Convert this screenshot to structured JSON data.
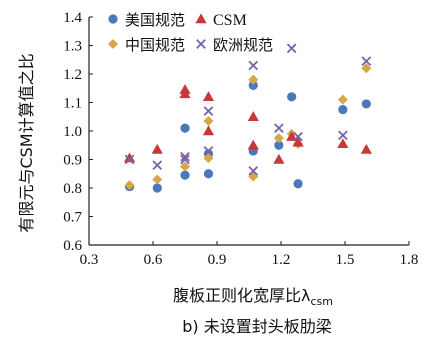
{
  "chart_data": {
    "type": "scatter",
    "xlabel": "腹板正则化宽厚比λ",
    "xlabel_subscript": "csm",
    "ylabel": "有限元与CSM计算值之比",
    "caption": "b) 未设置封头板肋梁",
    "xlim": [
      0.3,
      1.8
    ],
    "ylim": [
      0.6,
      1.4
    ],
    "xticks": [
      "0.3",
      "0.6",
      "0.9",
      "1.2",
      "1.5",
      "1.8"
    ],
    "yticks": [
      "0.6",
      "0.7",
      "0.8",
      "0.9",
      "1.0",
      "1.1",
      "1.2",
      "1.3",
      "1.4"
    ],
    "grid": false,
    "legend_position": "top",
    "series": [
      {
        "name": "美国规范",
        "marker": "circle",
        "color": "#4a78bd",
        "points": [
          [
            0.49,
            0.805
          ],
          [
            0.62,
            0.8
          ],
          [
            0.75,
            1.01
          ],
          [
            0.75,
            0.845
          ],
          [
            0.86,
            0.85
          ],
          [
            0.86,
            0.92
          ],
          [
            1.07,
            1.16
          ],
          [
            1.07,
            0.93
          ],
          [
            1.19,
            0.95
          ],
          [
            1.25,
            1.12
          ],
          [
            1.28,
            0.815
          ],
          [
            1.49,
            1.075
          ],
          [
            1.6,
            1.095
          ]
        ]
      },
      {
        "name": "CSM",
        "marker": "triangle",
        "color": "#c8373a",
        "points": [
          [
            0.49,
            0.905
          ],
          [
            0.62,
            0.935
          ],
          [
            0.75,
            1.145
          ],
          [
            0.75,
            1.13
          ],
          [
            0.86,
            1.12
          ],
          [
            0.86,
            1.0
          ],
          [
            1.07,
            1.05
          ],
          [
            1.07,
            0.95
          ],
          [
            1.19,
            0.9
          ],
          [
            1.25,
            0.98
          ],
          [
            1.28,
            0.96
          ],
          [
            1.49,
            0.955
          ],
          [
            1.6,
            0.935
          ]
        ]
      },
      {
        "name": "中国规范",
        "marker": "diamond",
        "color": "#d4a84a",
        "points": [
          [
            0.49,
            0.81
          ],
          [
            0.62,
            0.83
          ],
          [
            0.75,
            0.875
          ],
          [
            0.75,
            1.135
          ],
          [
            0.86,
            1.035
          ],
          [
            0.86,
            0.905
          ],
          [
            1.07,
            1.18
          ],
          [
            1.07,
            0.84
          ],
          [
            1.19,
            0.975
          ],
          [
            1.25,
            0.99
          ],
          [
            1.28,
            0.955
          ],
          [
            1.49,
            1.11
          ],
          [
            1.6,
            1.22
          ]
        ]
      },
      {
        "name": "欧洲规范",
        "marker": "x",
        "color": "#7b5fa8",
        "points": [
          [
            0.49,
            0.9
          ],
          [
            0.62,
            0.88
          ],
          [
            0.75,
            0.9
          ],
          [
            0.75,
            0.91
          ],
          [
            0.86,
            1.07
          ],
          [
            0.86,
            0.93
          ],
          [
            1.07,
            1.23
          ],
          [
            1.07,
            0.86
          ],
          [
            1.19,
            1.01
          ],
          [
            1.25,
            1.29
          ],
          [
            1.28,
            0.98
          ],
          [
            1.49,
            0.985
          ],
          [
            1.6,
            1.245
          ]
        ]
      }
    ]
  }
}
